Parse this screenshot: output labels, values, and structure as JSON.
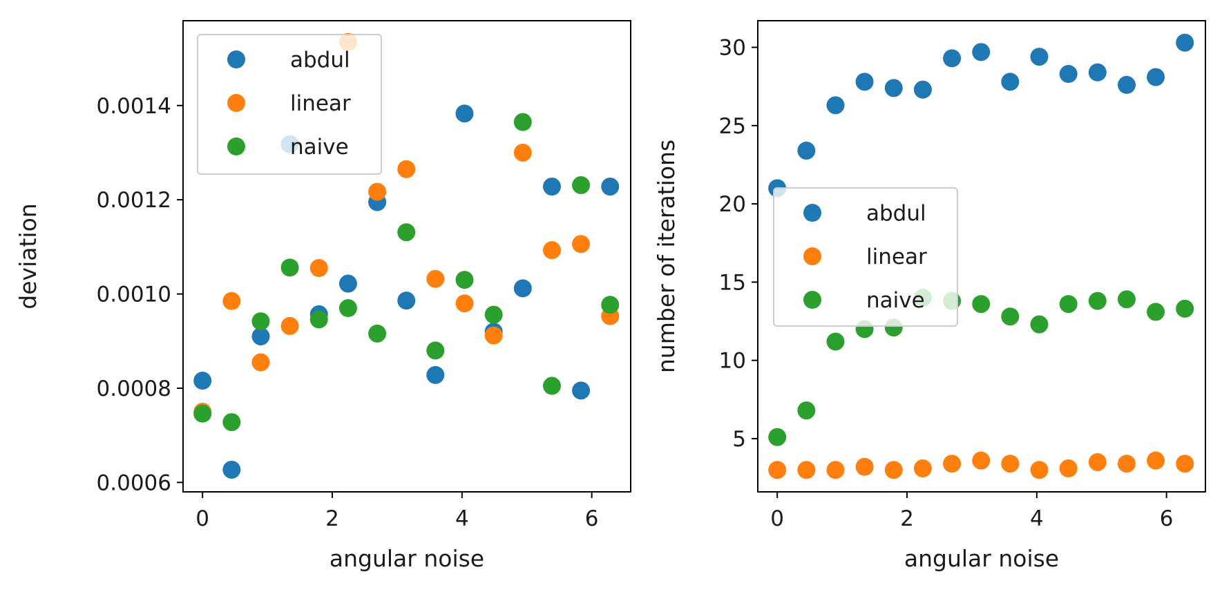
{
  "chart_data": [
    {
      "type": "scatter",
      "xlabel": "angular noise",
      "ylabel": "deviation",
      "xlim": [
        -0.3,
        6.6
      ],
      "ylim": [
        0.00058,
        0.00158
      ],
      "xticks": [
        0,
        2,
        4,
        6
      ],
      "yticks": [
        0.0006,
        0.0008,
        0.001,
        0.0012,
        0.0014
      ],
      "ytick_labels": [
        "0.0006",
        "0.0008",
        "0.0010",
        "0.0012",
        "0.0014"
      ],
      "grid": false,
      "legend": "upper-left",
      "x": [
        0,
        0.449,
        0.898,
        1.346,
        1.795,
        2.244,
        2.693,
        3.142,
        3.59,
        4.039,
        4.488,
        4.937,
        5.386,
        5.834,
        6.283
      ],
      "series": [
        {
          "name": "abdul",
          "color": "#1f77b4",
          "values": [
            0.000816,
            0.000627,
            0.00091,
            0.001318,
            0.000957,
            0.001022,
            0.001195,
            0.000986,
            0.000828,
            0.001383,
            0.00092,
            0.001012,
            0.001228,
            0.000795,
            0.001228
          ]
        },
        {
          "name": "linear",
          "color": "#ff7f0e",
          "values": [
            0.00075,
            0.000985,
            0.000855,
            0.000932,
            0.001055,
            0.001535,
            0.001217,
            0.001265,
            0.001032,
            0.00098,
            0.000912,
            0.0013,
            0.001093,
            0.001106,
            0.000953
          ]
        },
        {
          "name": "naive",
          "color": "#2ca02c",
          "values": [
            0.000746,
            0.000728,
            0.000942,
            0.001056,
            0.000946,
            0.00097,
            0.000916,
            0.001131,
            0.00088,
            0.00103,
            0.000956,
            0.001365,
            0.000805,
            0.001231,
            0.000977
          ]
        }
      ]
    },
    {
      "type": "scatter",
      "xlabel": "angular noise",
      "ylabel": "number of iterations",
      "xlim": [
        -0.3,
        6.6
      ],
      "ylim": [
        1.6,
        31.7
      ],
      "xticks": [
        0,
        2,
        4,
        6
      ],
      "yticks": [
        5,
        10,
        15,
        20,
        25,
        30
      ],
      "ytick_labels": [
        "5",
        "10",
        "15",
        "20",
        "25",
        "30"
      ],
      "grid": false,
      "legend": "center-left",
      "x": [
        0,
        0.449,
        0.898,
        1.346,
        1.795,
        2.244,
        2.693,
        3.142,
        3.59,
        4.039,
        4.488,
        4.937,
        5.386,
        5.834,
        6.283
      ],
      "series": [
        {
          "name": "abdul",
          "color": "#1f77b4",
          "values": [
            21.0,
            23.4,
            26.3,
            27.8,
            27.4,
            27.3,
            29.3,
            29.7,
            27.8,
            29.4,
            28.3,
            28.4,
            27.6,
            28.1,
            30.3
          ]
        },
        {
          "name": "linear",
          "color": "#ff7f0e",
          "values": [
            3.0,
            3.0,
            3.0,
            3.2,
            3.0,
            3.1,
            3.4,
            3.6,
            3.4,
            3.0,
            3.1,
            3.5,
            3.4,
            3.6,
            3.4
          ]
        },
        {
          "name": "naive",
          "color": "#2ca02c",
          "values": [
            5.1,
            6.8,
            11.2,
            12.0,
            12.1,
            14.0,
            13.8,
            13.6,
            12.8,
            12.3,
            13.6,
            13.8,
            13.9,
            13.1,
            13.3
          ]
        }
      ]
    }
  ]
}
